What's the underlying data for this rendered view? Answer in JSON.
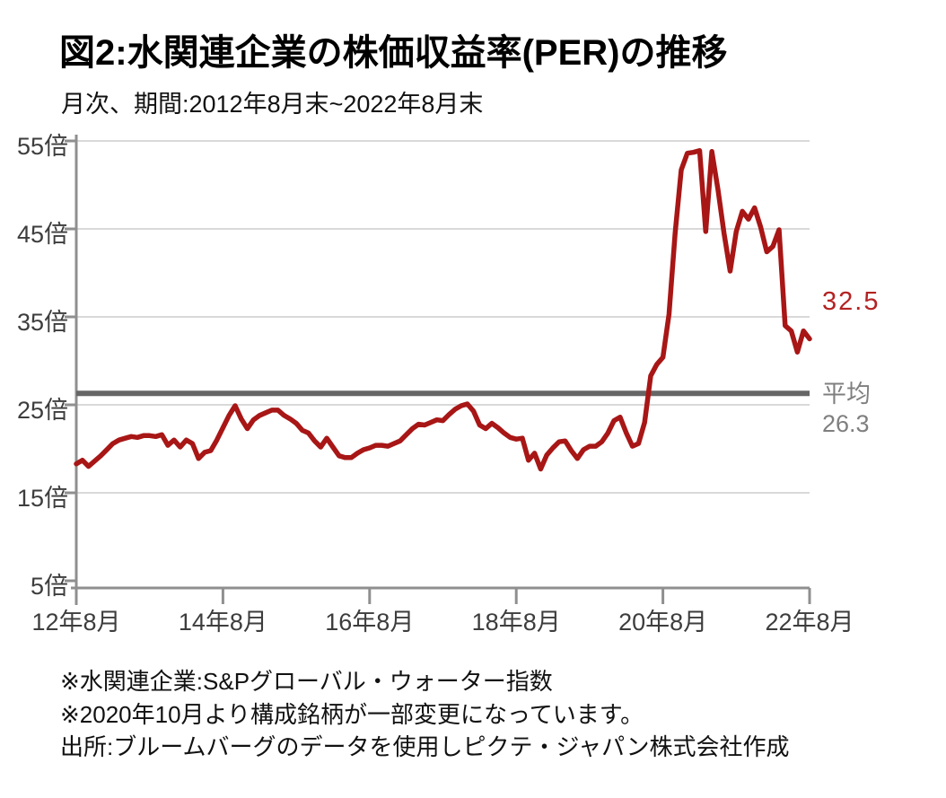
{
  "chart_data": {
    "type": "line",
    "title": "図2:水関連企業の株価収益率(PER)の推移",
    "subtitle": "月次、期間:2012年8月末~2022年8月末",
    "xlabel": "",
    "ylabel": "",
    "ylim": [
      5,
      55
    ],
    "grid": true,
    "legend": "none",
    "y_ticks": [
      {
        "label": "55倍",
        "value": 55
      },
      {
        "label": "45倍",
        "value": 45
      },
      {
        "label": "35倍",
        "value": 35
      },
      {
        "label": "25倍",
        "value": 25
      },
      {
        "label": "15倍",
        "value": 15
      },
      {
        "label": "5倍",
        "value": 5
      }
    ],
    "x_ticks": [
      {
        "label": "12年8月",
        "index": 0
      },
      {
        "label": "14年8月",
        "index": 24
      },
      {
        "label": "16年8月",
        "index": 48
      },
      {
        "label": "18年8月",
        "index": 72
      },
      {
        "label": "20年8月",
        "index": 96
      },
      {
        "label": "22年8月",
        "index": 120
      }
    ],
    "series": [
      {
        "name": "水関連企業の株価収益率(PER)",
        "start": "2012年8月末",
        "end": "2022年8月末",
        "frequency": "monthly",
        "values": [
          18.3,
          18.7,
          18.0,
          18.6,
          19.2,
          19.9,
          20.6,
          21.0,
          21.2,
          21.4,
          21.3,
          21.5,
          21.5,
          21.4,
          21.6,
          20.4,
          21.0,
          20.2,
          21.0,
          20.6,
          18.9,
          19.6,
          19.8,
          21.0,
          22.4,
          23.8,
          24.9,
          23.4,
          22.3,
          23.3,
          23.8,
          24.1,
          24.4,
          24.4,
          23.8,
          23.4,
          22.9,
          22.1,
          21.8,
          20.9,
          20.2,
          21.2,
          20.2,
          19.2,
          19.0,
          19.0,
          19.5,
          19.9,
          20.1,
          20.4,
          20.4,
          20.3,
          20.6,
          20.9,
          21.6,
          22.3,
          22.8,
          22.7,
          23.0,
          23.3,
          23.2,
          23.9,
          24.5,
          24.9,
          25.1,
          24.3,
          22.7,
          22.3,
          22.9,
          22.4,
          21.8,
          21.3,
          21.1,
          21.2,
          18.7,
          19.5,
          17.7,
          19.3,
          20.1,
          20.8,
          20.9,
          19.8,
          18.9,
          19.9,
          20.3,
          20.3,
          20.8,
          21.8,
          23.2,
          23.6,
          21.8,
          20.3,
          20.6,
          23.0,
          28.3,
          29.6,
          30.4,
          35.3,
          44.5,
          51.7,
          53.6,
          53.7,
          53.9,
          44.7,
          53.8,
          49.5,
          44.5,
          40.2,
          44.7,
          47.0,
          46.1,
          47.4,
          45.2,
          42.4,
          43.0,
          44.9,
          34.0,
          33.4,
          31.0,
          33.4,
          32.5
        ]
      }
    ],
    "average_line": {
      "label": "平均",
      "value": 26.3,
      "value_label": "26.3"
    },
    "last_value_label": "32.5",
    "colors": {
      "line": "#A81616",
      "average": "#666666",
      "axis": "#8F8F8F",
      "grid": "#D9D9D9",
      "last_value_text": "#B42222",
      "average_text": "#7F7F7F",
      "tick_text": "#3D3D3D"
    }
  },
  "footnotes": [
    "※水関連企業:S&Pグローバル・ウォーター指数",
    "※2020年10月より構成銘柄が一部変更になっています。",
    "出所:ブルームバーグのデータを使用しピクテ・ジャパン株式会社作成"
  ]
}
